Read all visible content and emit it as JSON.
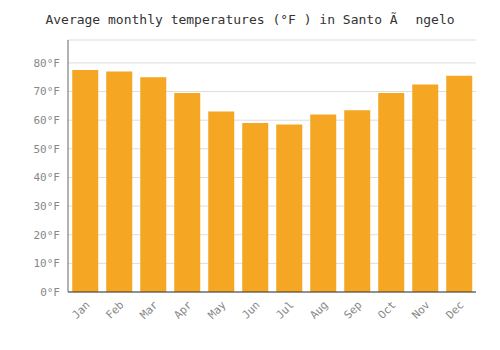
{
  "chart_data": {
    "type": "bar",
    "title": "Average monthly temperatures (°F ) in Santo Ã ngelo",
    "categories": [
      "Jan",
      "Feb",
      "Mar",
      "Apr",
      "May",
      "Jun",
      "Jul",
      "Aug",
      "Sep",
      "Oct",
      "Nov",
      "Dec"
    ],
    "values": [
      77.5,
      77.0,
      75.0,
      69.5,
      63.0,
      59.0,
      58.5,
      62.0,
      63.5,
      69.5,
      72.5,
      75.5
    ],
    "color": "#F5A623",
    "ylim": [
      0,
      88
    ],
    "yticks": [
      {
        "value": 0,
        "label": "0°F"
      },
      {
        "value": 10,
        "label": "10°F"
      },
      {
        "value": 20,
        "label": "20°F"
      },
      {
        "value": 30,
        "label": "30°F"
      },
      {
        "value": 40,
        "label": "40°F"
      },
      {
        "value": 50,
        "label": "50°F"
      },
      {
        "value": 60,
        "label": "60°F"
      },
      {
        "value": 70,
        "label": "70°F"
      },
      {
        "value": 80,
        "label": "80°F"
      }
    ],
    "grid": true
  }
}
